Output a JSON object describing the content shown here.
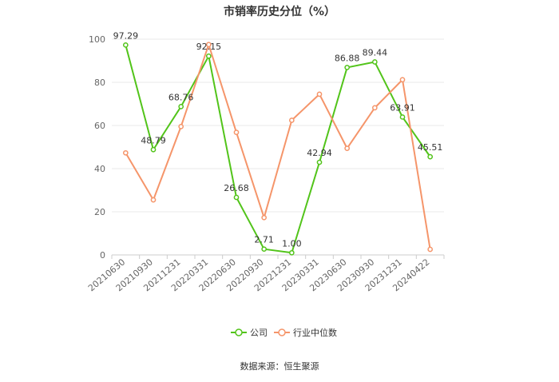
{
  "chart_data": {
    "type": "line",
    "title": "市销率历史分位（%）",
    "categories": [
      "20210630",
      "20210930",
      "20211231",
      "20220331",
      "20220630",
      "20220930",
      "20221231",
      "20230331",
      "20230630",
      "20230930",
      "20231231",
      "20240422"
    ],
    "ylim": [
      0,
      100
    ],
    "yticks": [
      0,
      20,
      40,
      60,
      80,
      100
    ],
    "grid": true,
    "legend_position": "bottom",
    "series": [
      {
        "name": "公司",
        "color": "#52c41a",
        "values": [
          97.29,
          48.79,
          68.76,
          92.15,
          26.68,
          2.71,
          1.0,
          42.94,
          86.88,
          89.44,
          63.91,
          45.51
        ],
        "labels": [
          "97.29",
          "48.79",
          "68.76",
          "92.15",
          "26.68",
          "2.71",
          "1.00",
          "42.94",
          "86.88",
          "89.44",
          "63.91",
          "45.51"
        ]
      },
      {
        "name": "行业中位数",
        "color": "#f5956a",
        "values": [
          47.3,
          25.5,
          59.5,
          97.5,
          56.8,
          17.3,
          62.4,
          74.5,
          49.4,
          68.2,
          81.2,
          2.6
        ]
      }
    ]
  },
  "source": "数据来源：恒生聚源"
}
